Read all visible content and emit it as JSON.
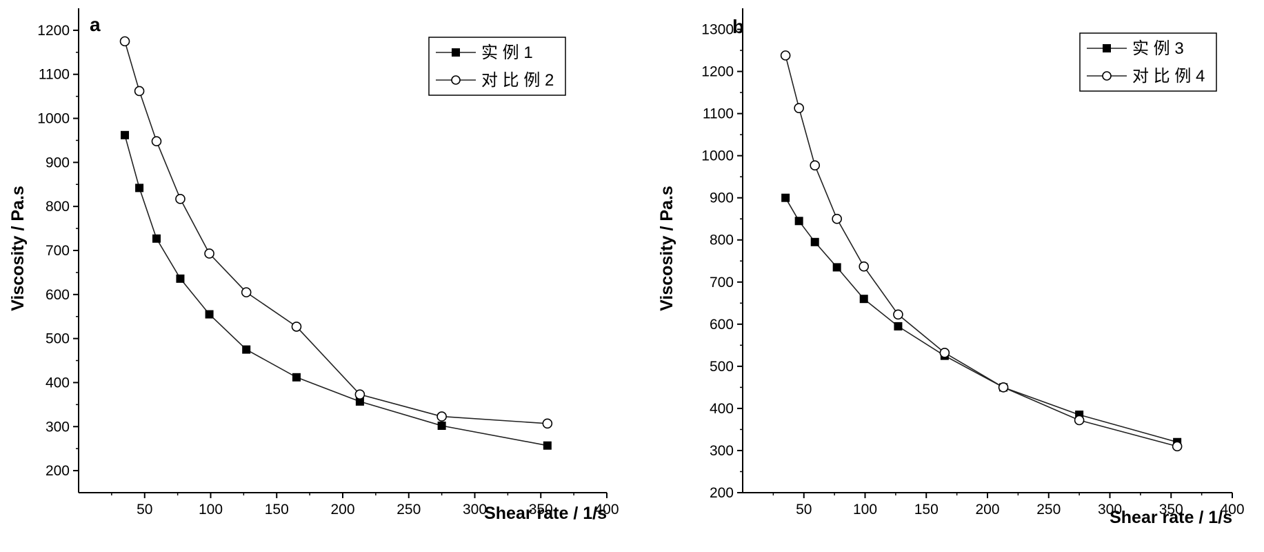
{
  "chart_data": [
    {
      "type": "line",
      "panel_label": "a",
      "xlabel": "Shear rate / 1/s",
      "ylabel": "Viscosity / Pa.s",
      "xlim": [
        0,
        400
      ],
      "ylim": [
        150,
        1250
      ],
      "x_ticks": [
        50,
        100,
        150,
        200,
        250,
        300,
        350,
        400
      ],
      "y_ticks": [
        200,
        300,
        400,
        500,
        600,
        700,
        800,
        900,
        1000,
        1100,
        1200
      ],
      "legend_position": "top-right",
      "series": [
        {
          "name": "实 例 1",
          "marker": "filled-square",
          "x": [
            35,
            46,
            59,
            77,
            99,
            127,
            165,
            213,
            275,
            355
          ],
          "y": [
            962,
            842,
            727,
            636,
            555,
            475,
            412,
            357,
            302,
            257
          ]
        },
        {
          "name": "对 比 例 2",
          "marker": "open-circle",
          "x": [
            35,
            46,
            59,
            77,
            99,
            127,
            165,
            213,
            275,
            355
          ],
          "y": [
            1175,
            1062,
            948,
            817,
            693,
            605,
            527,
            373,
            323,
            307
          ]
        }
      ]
    },
    {
      "type": "line",
      "panel_label": "b",
      "xlabel": "Shear rate / 1/s",
      "ylabel": "Viscosity / Pa.s",
      "xlim": [
        0,
        400
      ],
      "ylim": [
        200,
        1350
      ],
      "x_ticks": [
        50,
        100,
        150,
        200,
        250,
        300,
        350,
        400
      ],
      "y_ticks": [
        200,
        300,
        400,
        500,
        600,
        700,
        800,
        900,
        1000,
        1100,
        1200,
        1300
      ],
      "legend_position": "top-right",
      "series": [
        {
          "name": "实 例 3",
          "marker": "filled-square",
          "x": [
            35,
            46,
            59,
            77,
            99,
            127,
            165,
            213,
            275,
            355
          ],
          "y": [
            900,
            845,
            795,
            735,
            660,
            595,
            525,
            450,
            385,
            320
          ]
        },
        {
          "name": "对 比 例 4",
          "marker": "open-circle",
          "x": [
            35,
            46,
            59,
            77,
            99,
            127,
            165,
            213,
            275,
            355
          ],
          "y": [
            1238,
            1113,
            977,
            850,
            737,
            623,
            532,
            450,
            372,
            310
          ]
        }
      ]
    }
  ]
}
